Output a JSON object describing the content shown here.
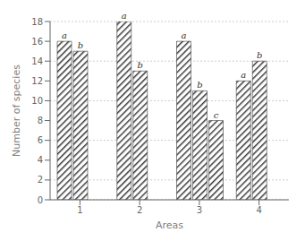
{
  "chart_data": {
    "type": "bar",
    "xlabel": "Areas",
    "ylabel": "Number of species",
    "categories": [
      "1",
      "2",
      "3",
      "4"
    ],
    "series": [
      {
        "name": "a",
        "values": [
          16,
          18,
          16,
          12
        ]
      },
      {
        "name": "b",
        "values": [
          15,
          13,
          11,
          14
        ]
      },
      {
        "name": "c",
        "values": [
          null,
          null,
          8,
          null
        ]
      }
    ],
    "color": "#3a3a3a",
    "ylim": [
      0,
      18
    ],
    "yticks": [
      0,
      2,
      4,
      6,
      8,
      10,
      12,
      14,
      16,
      18
    ],
    "grid": true
  }
}
